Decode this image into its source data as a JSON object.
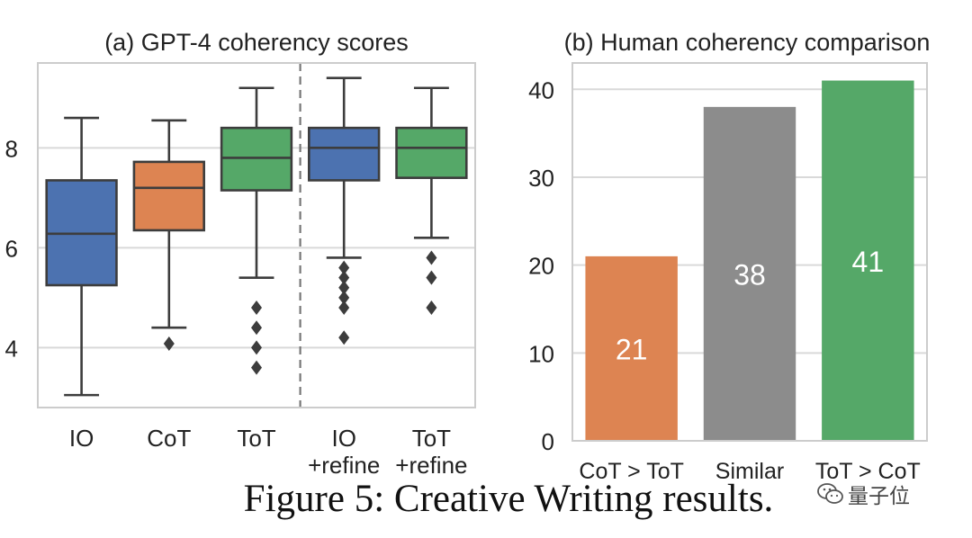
{
  "figure": {
    "caption": "Figure 5: Creative Writing results.",
    "watermark": "量子位"
  },
  "chart_data": [
    {
      "type": "box",
      "title": "(a) GPT-4 coherency scores",
      "xlabel": "",
      "ylabel": "",
      "ylim": [
        2.8,
        9.7
      ],
      "yticks": [
        4,
        6,
        8
      ],
      "grid": true,
      "separator_after_index": 2,
      "categories": [
        "IO",
        "CoT",
        "ToT",
        "IO +refine",
        "ToT +refine"
      ],
      "category_lines": [
        [
          "IO"
        ],
        [
          "CoT"
        ],
        [
          "ToT"
        ],
        [
          "IO",
          "+refine"
        ],
        [
          "ToT",
          "+refine"
        ]
      ],
      "boxes": [
        {
          "name": "IO",
          "color": "#4c72b0",
          "whisker_low": 3.05,
          "q1": 5.25,
          "median": 6.28,
          "q3": 7.35,
          "whisker_high": 8.6,
          "outliers": []
        },
        {
          "name": "CoT",
          "color": "#dd8452",
          "whisker_low": 4.4,
          "q1": 6.35,
          "median": 7.2,
          "q3": 7.72,
          "whisker_high": 8.55,
          "outliers": [
            4.08
          ]
        },
        {
          "name": "ToT",
          "color": "#55a868",
          "whisker_low": 5.4,
          "q1": 7.15,
          "median": 7.8,
          "q3": 8.4,
          "whisker_high": 9.2,
          "outliers": [
            4.8,
            4.4,
            4.0,
            3.6
          ]
        },
        {
          "name": "IO +refine",
          "color": "#4c72b0",
          "whisker_low": 5.8,
          "q1": 7.35,
          "median": 8.0,
          "q3": 8.4,
          "whisker_high": 9.4,
          "outliers": [
            5.6,
            5.4,
            5.2,
            5.0,
            4.8,
            4.2
          ]
        },
        {
          "name": "ToT +refine",
          "color": "#55a868",
          "whisker_low": 6.2,
          "q1": 7.4,
          "median": 8.0,
          "q3": 8.4,
          "whisker_high": 9.2,
          "outliers": [
            5.8,
            5.4,
            4.8
          ]
        }
      ]
    },
    {
      "type": "bar",
      "title": "(b) Human coherency comparison",
      "xlabel": "",
      "ylabel": "",
      "ylim": [
        0,
        43
      ],
      "yticks": [
        0,
        10,
        20,
        30,
        40
      ],
      "grid": true,
      "categories": [
        "CoT > ToT",
        "Similar",
        "ToT > CoT"
      ],
      "values": [
        21,
        38,
        41
      ],
      "colors": [
        "#dd8452",
        "#8c8c8c",
        "#55a868"
      ],
      "data_labels": [
        "21",
        "38",
        "41"
      ]
    }
  ]
}
